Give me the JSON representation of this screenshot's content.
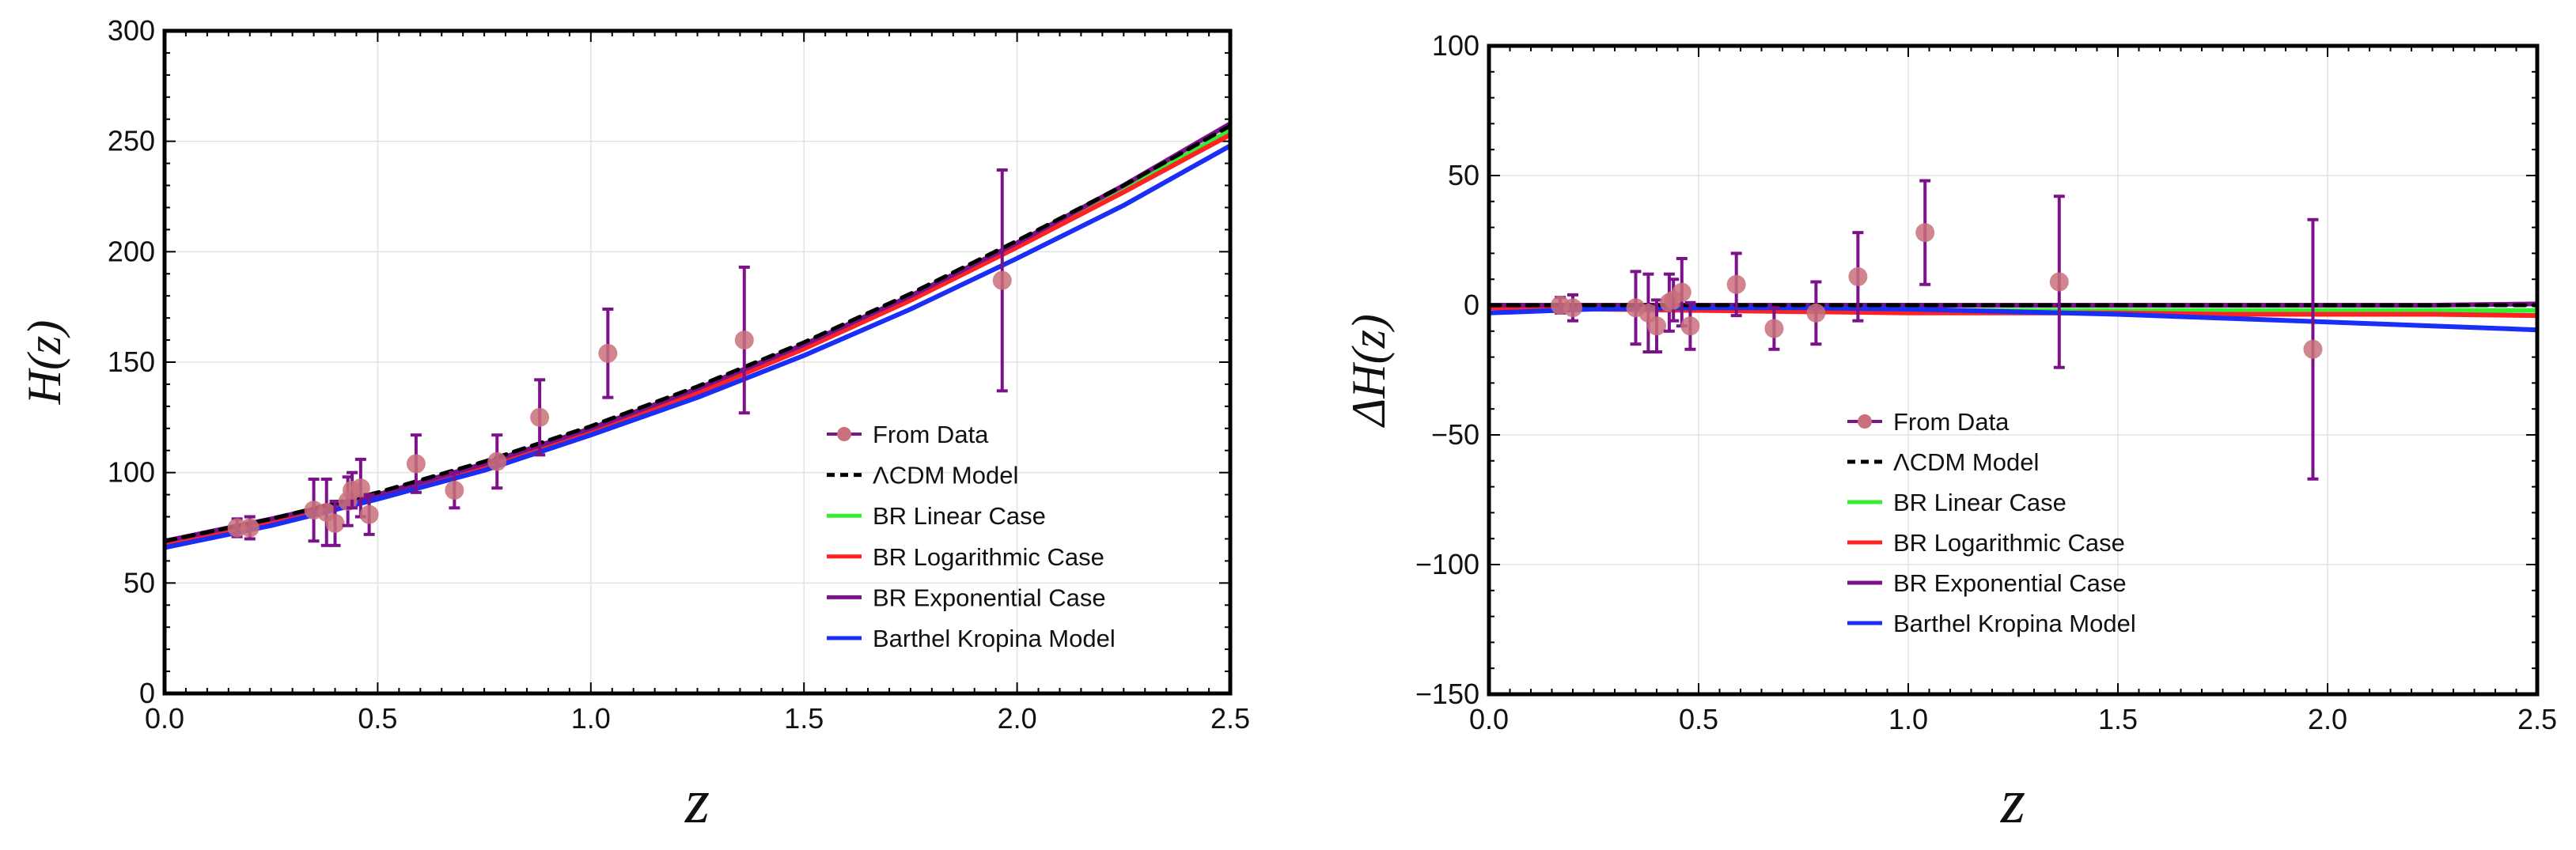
{
  "chart_data": [
    {
      "type": "line",
      "title": "",
      "xlabel": "z",
      "ylabel": "H(z)",
      "xlim": [
        0.0,
        2.5
      ],
      "ylim": [
        0,
        300
      ],
      "xticks": [
        "0.0",
        "0.5",
        "1.0",
        "1.5",
        "2.0",
        "2.5"
      ],
      "yticks": [
        "0",
        "50",
        "100",
        "150",
        "200",
        "250",
        "300"
      ],
      "grid": true,
      "legend_position": "bottom-right",
      "curve_x": [
        0.0,
        0.25,
        0.5,
        0.75,
        1.0,
        1.25,
        1.5,
        1.75,
        2.0,
        2.25,
        2.5
      ],
      "series": [
        {
          "name": "ΛCDM Model",
          "color": "#000000",
          "style": "dashed",
          "values": [
            69,
            79,
            91,
            105,
            121,
            139,
            159,
            181,
            205,
            230,
            257
          ]
        },
        {
          "name": "BR Linear Case",
          "color": "#33ee33",
          "style": "solid",
          "values": [
            68,
            78,
            89,
            103,
            119,
            137,
            157,
            179,
            203,
            228,
            255
          ]
        },
        {
          "name": "BR Logarithmic Case",
          "color": "#ff2222",
          "style": "solid",
          "values": [
            68,
            78,
            89,
            103,
            118,
            136,
            156,
            178,
            202,
            227,
            253
          ]
        },
        {
          "name": "BR Exponential Case",
          "color": "#7b128a",
          "style": "solid",
          "values": [
            69,
            79,
            90,
            104,
            120,
            138,
            158,
            180,
            204,
            230,
            258
          ]
        },
        {
          "name": "Barthel Kropina Model",
          "color": "#1a2ef5",
          "style": "solid",
          "values": [
            66,
            76,
            88,
            101,
            117,
            134,
            153,
            174,
            197,
            221,
            248
          ]
        }
      ],
      "data_points": {
        "name": "From Data",
        "color": "#c9707a",
        "errorbar_color": "#7b128a",
        "points": [
          {
            "x": 0.17,
            "y": 75,
            "err": 4
          },
          {
            "x": 0.2,
            "y": 75,
            "err": 5
          },
          {
            "x": 0.35,
            "y": 83,
            "err": 14
          },
          {
            "x": 0.38,
            "y": 82,
            "err": 15
          },
          {
            "x": 0.4,
            "y": 77,
            "err": 10
          },
          {
            "x": 0.43,
            "y": 87,
            "err": 11
          },
          {
            "x": 0.44,
            "y": 92,
            "err": 8
          },
          {
            "x": 0.46,
            "y": 93,
            "err": 13
          },
          {
            "x": 0.48,
            "y": 81,
            "err": 9
          },
          {
            "x": 0.59,
            "y": 104,
            "err": 13
          },
          {
            "x": 0.68,
            "y": 92,
            "err": 8
          },
          {
            "x": 0.78,
            "y": 105,
            "err": 12
          },
          {
            "x": 0.88,
            "y": 125,
            "err": 17
          },
          {
            "x": 1.04,
            "y": 154,
            "err": 20
          },
          {
            "x": 1.36,
            "y": 160,
            "err": 33
          },
          {
            "x": 1.965,
            "y": 187,
            "err": 50
          }
        ]
      },
      "legend": [
        "From Data",
        "ΛCDM Model",
        "BR Linear Case",
        "BR Logarithmic Case",
        "BR Exponential Case",
        "Barthel Kropina Model"
      ]
    },
    {
      "type": "line",
      "title": "",
      "xlabel": "z",
      "ylabel": "ΔH(z)",
      "xlim": [
        0.0,
        2.5
      ],
      "ylim": [
        -150,
        100
      ],
      "xticks": [
        "0.0",
        "0.5",
        "1.0",
        "1.5",
        "2.0",
        "2.5"
      ],
      "yticks": [
        "−150",
        "−100",
        "−50",
        "0",
        "50",
        "100"
      ],
      "grid": true,
      "legend_position": "center",
      "curve_x": [
        0.0,
        0.25,
        0.5,
        0.75,
        1.0,
        1.25,
        1.5,
        1.75,
        2.0,
        2.25,
        2.5
      ],
      "series": [
        {
          "name": "ΛCDM Model",
          "color": "#000000",
          "style": "dashed",
          "values": [
            0,
            0,
            0,
            0,
            0,
            0,
            0,
            0,
            0,
            0,
            0
          ]
        },
        {
          "name": "BR Linear Case",
          "color": "#33ee33",
          "style": "solid",
          "values": [
            -1,
            -1,
            -1.5,
            -2,
            -2,
            -2,
            -2,
            -2,
            -2,
            -2,
            -2
          ]
        },
        {
          "name": "BR Logarithmic Case",
          "color": "#ff2222",
          "style": "solid",
          "values": [
            -1,
            -1.5,
            -2,
            -2.5,
            -3,
            -3,
            -3,
            -3.5,
            -3.5,
            -3.5,
            -4
          ]
        },
        {
          "name": "BR Exponential Case",
          "color": "#7b128a",
          "style": "solid",
          "values": [
            0,
            0,
            0,
            0,
            0,
            0,
            0,
            0,
            0,
            0,
            0.5
          ]
        },
        {
          "name": "Barthel Kropina Model",
          "color": "#1a2ef5",
          "style": "solid",
          "values": [
            -3,
            -1.5,
            -1,
            -1,
            -1.5,
            -2.5,
            -3.5,
            -5,
            -6.5,
            -8,
            -9.5
          ]
        }
      ],
      "data_points": {
        "name": "From Data",
        "color": "#c9707a",
        "errorbar_color": "#7b128a",
        "points": [
          {
            "x": 0.17,
            "y": 0,
            "err": 3
          },
          {
            "x": 0.2,
            "y": -1,
            "err": 5
          },
          {
            "x": 0.35,
            "y": -1,
            "err": 14
          },
          {
            "x": 0.38,
            "y": -3,
            "err": 15
          },
          {
            "x": 0.4,
            "y": -8,
            "err": 10
          },
          {
            "x": 0.43,
            "y": 1,
            "err": 11
          },
          {
            "x": 0.44,
            "y": 2,
            "err": 8
          },
          {
            "x": 0.46,
            "y": 5,
            "err": 13
          },
          {
            "x": 0.48,
            "y": -8,
            "err": 9
          },
          {
            "x": 0.59,
            "y": 8,
            "err": 12
          },
          {
            "x": 0.68,
            "y": -9,
            "err": 8
          },
          {
            "x": 0.78,
            "y": -3,
            "err": 12
          },
          {
            "x": 0.88,
            "y": 11,
            "err": 17
          },
          {
            "x": 1.04,
            "y": 28,
            "err": 20
          },
          {
            "x": 1.36,
            "y": 9,
            "err": 33
          },
          {
            "x": 1.965,
            "y": -17,
            "err": 50
          }
        ]
      },
      "legend": [
        "From Data",
        "ΛCDM Model",
        "BR Linear Case",
        "BR Logarithmic Case",
        "BR Exponential Case",
        "Barthel Kropina Model"
      ]
    }
  ]
}
